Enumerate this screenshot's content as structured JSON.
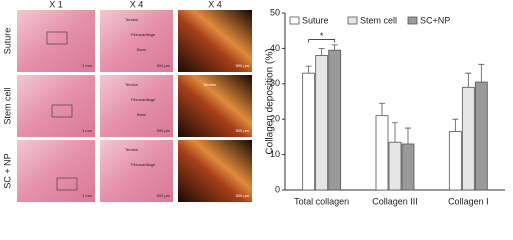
{
  "figure": {
    "columns": [
      "X 1",
      "X 4",
      "X 4"
    ],
    "rows": [
      "Suture",
      "Stem cell",
      "SC + NP"
    ],
    "panels": [
      [
        "1 mm"
      ],
      [
        "Tendon",
        "Fibrocartilage",
        "Bone",
        "500 μm"
      ],
      [
        "500 μm"
      ],
      [
        "1 mm"
      ],
      [
        "Tendon",
        "Fibrocartilage",
        "Bone",
        "500 μm"
      ],
      [
        "Tendon",
        "500 μm"
      ],
      [
        "1 mm"
      ],
      [
        "Tendon",
        "Fibrocartilage",
        "500 μm"
      ],
      [
        "500 μm"
      ]
    ]
  },
  "chart_data": {
    "type": "bar",
    "ylabel": "Collagen deposition (%)",
    "categories": [
      "Total collagen",
      "Collagen III",
      "Collagen I"
    ],
    "series": [
      {
        "name": "Suture",
        "color": "#ffffff",
        "values": [
          33,
          21,
          16.5
        ],
        "errors": [
          2,
          3.5,
          3.5
        ]
      },
      {
        "name": "Stem cell",
        "color": "#e6e6e6",
        "values": [
          38,
          13.5,
          29
        ],
        "errors": [
          2,
          5.5,
          4
        ]
      },
      {
        "name": "SC+NP",
        "color": "#9a9a9a",
        "values": [
          39.5,
          13,
          30.5
        ],
        "errors": [
          1.5,
          4.5,
          5
        ]
      }
    ],
    "ylim": [
      0,
      50
    ],
    "yticks": [
      0,
      10,
      20,
      30,
      40,
      50
    ],
    "annotations": [
      {
        "text": "*",
        "y": 42.5
      }
    ]
  }
}
